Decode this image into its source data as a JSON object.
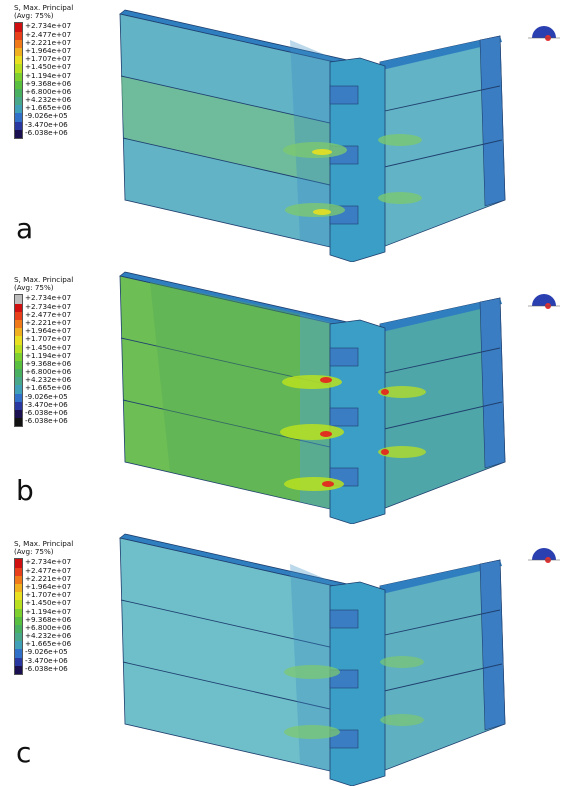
{
  "panels": [
    {
      "label": "a",
      "legend_title_1": "S, Max. Principal",
      "legend_title_2": "(Avg: 75%)",
      "values": [
        "+2.734e+07",
        "+2.477e+07",
        "+2.221e+07",
        "+1.964e+07",
        "+1.707e+07",
        "+1.450e+07",
        "+1.194e+07",
        "+9.368e+06",
        "+6.800e+06",
        "+4.232e+06",
        "+1.665e+06",
        "-9.026e+05",
        "-3.470e+06",
        "-6.038e+06"
      ],
      "colors": [
        "#d01010",
        "#e8401a",
        "#f07a1a",
        "#f0b020",
        "#e8e020",
        "#b8e020",
        "#7ed030",
        "#58bf40",
        "#48b060",
        "#4aa88a",
        "#3fa0b8",
        "#3070c8",
        "#2838a0",
        "#1a1050"
      ]
    },
    {
      "label": "b",
      "legend_title_1": "S, Max. Principal",
      "legend_title_2": "(Avg: 75%)",
      "values": [
        "+2.734e+07",
        "+2.734e+07",
        "+2.477e+07",
        "+2.221e+07",
        "+1.964e+07",
        "+1.707e+07",
        "+1.450e+07",
        "+1.194e+07",
        "+9.368e+06",
        "+6.800e+06",
        "+4.232e+06",
        "+1.665e+06",
        "-9.026e+05",
        "-3.470e+06",
        "-6.038e+06",
        "-6.038e+06"
      ],
      "colors": [
        "#bdbdbd",
        "#d01010",
        "#e8401a",
        "#f07a1a",
        "#f0b020",
        "#e8e020",
        "#b8e020",
        "#7ed030",
        "#58bf40",
        "#48b060",
        "#4aa88a",
        "#3fa0b8",
        "#3070c8",
        "#2838a0",
        "#1a1050",
        "#111111"
      ]
    },
    {
      "label": "c",
      "legend_title_1": "S, Max. Principal",
      "legend_title_2": "(Avg: 75%)",
      "values": [
        "+2.734e+07",
        "+2.477e+07",
        "+2.221e+07",
        "+1.964e+07",
        "+1.707e+07",
        "+1.450e+07",
        "+1.194e+07",
        "+9.368e+06",
        "+6.800e+06",
        "+4.232e+06",
        "+1.665e+06",
        "-9.026e+05",
        "-3.470e+06",
        "-6.038e+06"
      ],
      "colors": [
        "#d01010",
        "#e8401a",
        "#f07a1a",
        "#f0b020",
        "#e8e020",
        "#b8e020",
        "#7ed030",
        "#58bf40",
        "#48b060",
        "#4aa88a",
        "#3fa0b8",
        "#3070c8",
        "#2838a0",
        "#1a1050"
      ]
    }
  ],
  "model_colors": {
    "left_face": [
      "#5fb0c8",
      "#7cc870",
      "#5fb0c8"
    ],
    "right_face": [
      "#5fb0c8",
      "#7cc870",
      "#5fb0c8"
    ],
    "top_face": "#2f7fc0",
    "joint": "#3aa0c8",
    "hotspot": "#f0b020",
    "edge": "#1f3f6f"
  },
  "triad": {
    "icon": "coordinate-triad-icon"
  }
}
